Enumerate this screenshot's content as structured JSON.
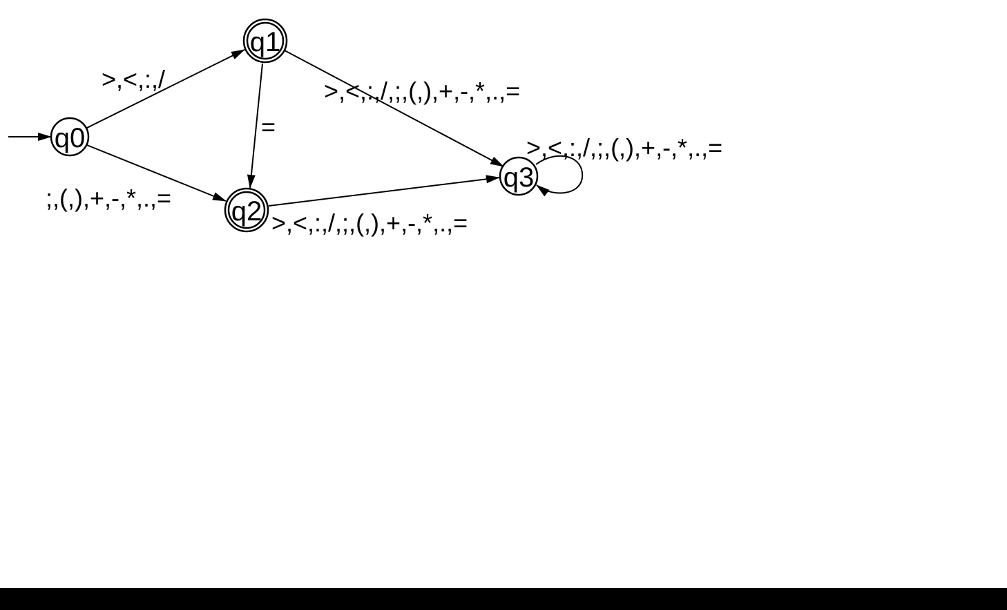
{
  "states": {
    "q0": "q0",
    "q1": "q1",
    "q2": "q2",
    "q3": "q3"
  },
  "transitions": {
    "q0_q1": ">,<,:,/",
    "q0_q2": ";,(,),+,-,*,.,=",
    "q1_q2": "=",
    "q1_q3": ">,<,:,/,;,(,),+,-,*,.,=",
    "q2_q3": ">,<,:,/,;,(,),+,-,*,.,=",
    "q3_q3": ">,<,:,/,;,(,),+,-,*,.,="
  },
  "accepting_states": [
    "q1",
    "q2"
  ],
  "start_state": "q0"
}
